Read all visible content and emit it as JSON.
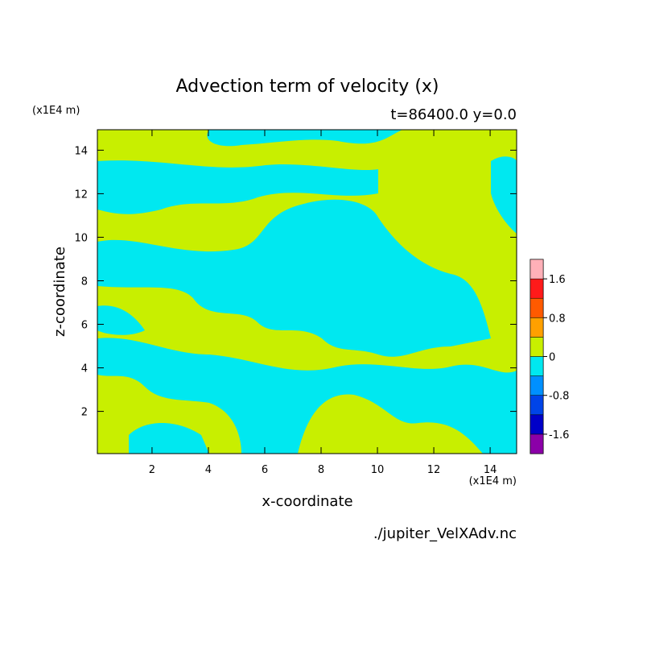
{
  "chart_data": {
    "type": "contour",
    "title": "Advection term of velocity (x)",
    "subtitle": "t=86400.0 y=0.0",
    "x_label": "x-coordinate",
    "y_label": "z-coordinate",
    "x_unit": "(x1E4 m)",
    "y_unit": "(x1E4 m)",
    "source": "./jupiter_VelXAdv.nc",
    "xlim": [
      0.06,
      14.94
    ],
    "ylim": [
      0.06,
      14.94
    ],
    "xticks": [
      2,
      4,
      6,
      8,
      10,
      12,
      14
    ],
    "yticks": [
      2,
      4,
      6,
      8,
      10,
      12,
      14
    ],
    "colorbar": {
      "lim": [
        -2,
        2
      ],
      "ticks": [
        -1.6,
        -0.8,
        0,
        0.8,
        1.6
      ],
      "ticklabels": [
        {
          "value": -1.6,
          "label": "-1.6"
        },
        {
          "value": -0.8,
          "label": "-0.8"
        },
        {
          "value": 0,
          "label": "0"
        },
        {
          "value": 0.8,
          "label": "0.8"
        },
        {
          "value": 1.6,
          "label": "1.6"
        }
      ],
      "colors": [
        "#8b00a8",
        "#0000c8",
        "#0044e8",
        "#0090ff",
        "#00e8f0",
        "#c8ef00",
        "#ffa000",
        "#ff5a00",
        "#ff1a1a",
        "#ffb0b8"
      ]
    }
  }
}
